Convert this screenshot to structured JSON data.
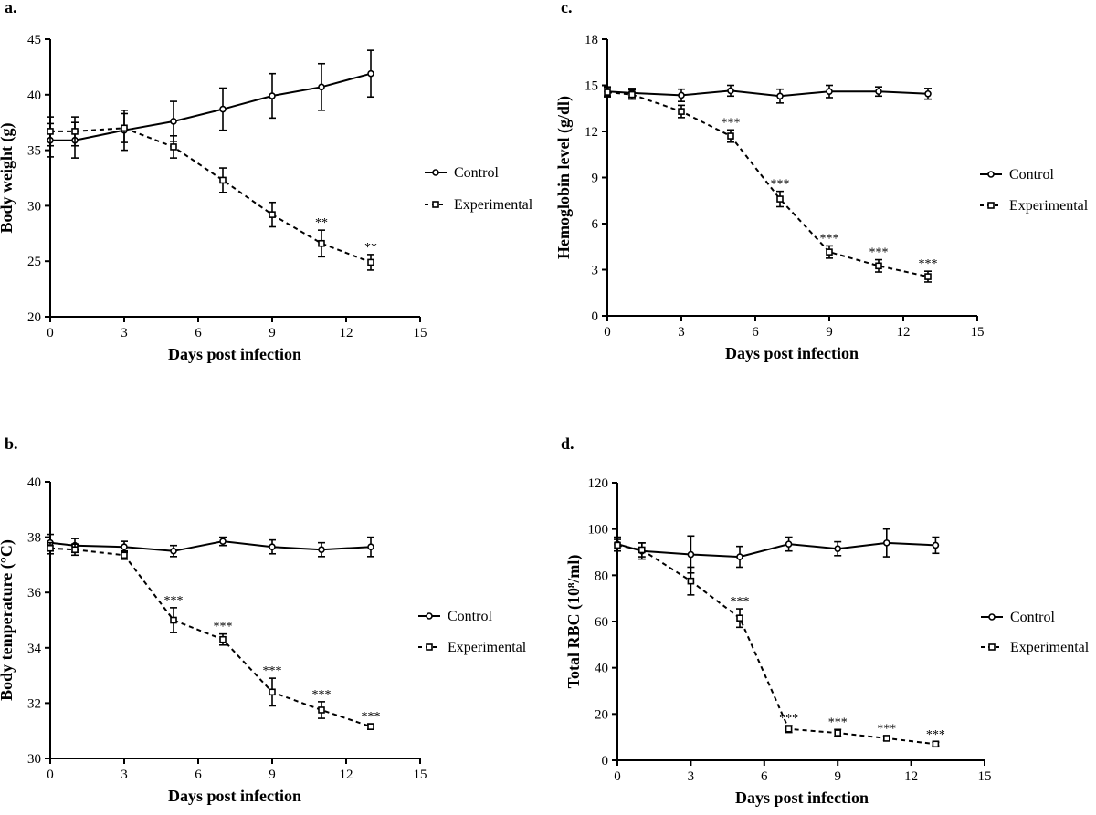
{
  "chart_data": [
    {
      "type": "line",
      "panel_label": "a.",
      "xlabel": "Days post infection",
      "ylabel": "Body weight (g)",
      "xlim": [
        0,
        15
      ],
      "ylim": [
        20,
        45
      ],
      "xticks": [
        0,
        3,
        6,
        9,
        12,
        15
      ],
      "yticks": [
        20,
        25,
        30,
        35,
        40,
        45
      ],
      "legend": {
        "position": "right",
        "entries": [
          "Control",
          "Experimental"
        ]
      },
      "x": [
        0,
        1,
        3,
        5,
        7,
        9,
        11,
        13
      ],
      "series": [
        {
          "name": "Control",
          "style": "solid",
          "marker": "circle",
          "values": [
            35.9,
            35.9,
            36.8,
            37.6,
            38.7,
            39.9,
            40.7,
            41.9
          ],
          "errors": [
            1.5,
            1.6,
            1.8,
            1.8,
            1.9,
            2.0,
            2.1,
            2.1
          ],
          "annotations": [
            "",
            "",
            "",
            "",
            "",
            "",
            "",
            ""
          ]
        },
        {
          "name": "Experimental",
          "style": "dashed",
          "marker": "square",
          "values": [
            36.7,
            36.7,
            37.0,
            35.3,
            32.3,
            29.2,
            26.6,
            24.9
          ],
          "errors": [
            1.3,
            1.3,
            1.3,
            1.0,
            1.1,
            1.1,
            1.2,
            0.7
          ],
          "annotations": [
            "",
            "",
            "",
            "",
            "",
            "",
            "**",
            "**"
          ]
        }
      ]
    },
    {
      "type": "line",
      "panel_label": "b.",
      "xlabel": "Days post infection",
      "ylabel": "Body temperature (°C)",
      "xlim": [
        0,
        15
      ],
      "ylim": [
        30,
        40
      ],
      "xticks": [
        0,
        3,
        6,
        9,
        12,
        15
      ],
      "yticks": [
        30,
        32,
        34,
        36,
        38,
        40
      ],
      "legend": {
        "position": "right",
        "entries": [
          "Control",
          "Experimental"
        ]
      },
      "x": [
        0,
        1,
        3,
        5,
        7,
        9,
        11,
        13
      ],
      "series": [
        {
          "name": "Control",
          "style": "solid",
          "marker": "circle",
          "values": [
            37.8,
            37.7,
            37.65,
            37.5,
            37.85,
            37.65,
            37.55,
            37.65
          ],
          "errors": [
            0.3,
            0.25,
            0.2,
            0.2,
            0.15,
            0.25,
            0.25,
            0.35
          ],
          "annotations": [
            "",
            "",
            "",
            "",
            "",
            "",
            "",
            ""
          ]
        },
        {
          "name": "Experimental",
          "style": "dashed",
          "marker": "square",
          "values": [
            37.6,
            37.55,
            37.35,
            35.0,
            34.3,
            32.4,
            31.75,
            31.15
          ],
          "errors": [
            0.2,
            0.2,
            0.15,
            0.45,
            0.2,
            0.5,
            0.3,
            0.1
          ],
          "annotations": [
            "",
            "",
            "",
            "***",
            "***",
            "***",
            "***",
            "***"
          ]
        }
      ]
    },
    {
      "type": "line",
      "panel_label": "c.",
      "xlabel": "Days post infection",
      "ylabel": "Hemoglobin level (g/dl)",
      "xlim": [
        0,
        15
      ],
      "ylim": [
        0,
        18
      ],
      "xticks": [
        0,
        3,
        6,
        9,
        12,
        15
      ],
      "yticks": [
        0,
        3,
        6,
        9,
        12,
        15,
        18
      ],
      "legend": {
        "position": "right",
        "entries": [
          "Control",
          "Experimental"
        ]
      },
      "x": [
        0,
        1,
        3,
        5,
        7,
        9,
        11,
        13
      ],
      "series": [
        {
          "name": "Control",
          "style": "solid",
          "marker": "circle",
          "values": [
            14.6,
            14.5,
            14.35,
            14.65,
            14.3,
            14.6,
            14.6,
            14.45
          ],
          "errors": [
            0.3,
            0.3,
            0.4,
            0.35,
            0.45,
            0.4,
            0.3,
            0.35
          ],
          "annotations": [
            "",
            "",
            "",
            "",
            "",
            "",
            "",
            ""
          ]
        },
        {
          "name": "Experimental",
          "style": "dashed",
          "marker": "square",
          "values": [
            14.55,
            14.4,
            13.3,
            11.7,
            7.6,
            4.15,
            3.25,
            2.55
          ],
          "errors": [
            0.3,
            0.3,
            0.4,
            0.4,
            0.5,
            0.4,
            0.4,
            0.35
          ],
          "annotations": [
            "",
            "",
            "",
            "***",
            "***",
            "***",
            "***",
            "***"
          ]
        }
      ]
    },
    {
      "type": "line",
      "panel_label": "d.",
      "xlabel": "Days post infection",
      "ylabel": "Total RBC (10⁸/ml)",
      "xlim": [
        0,
        15
      ],
      "ylim": [
        0,
        120
      ],
      "xticks": [
        0,
        3,
        6,
        9,
        12,
        15
      ],
      "yticks": [
        0,
        20,
        40,
        60,
        80,
        100,
        120
      ],
      "legend": {
        "position": "right",
        "entries": [
          "Control",
          "Experimental"
        ]
      },
      "x": [
        0,
        1,
        3,
        5,
        7,
        9,
        11,
        13
      ],
      "series": [
        {
          "name": "Control",
          "style": "solid",
          "marker": "circle",
          "values": [
            93.5,
            90.5,
            89.0,
            88.0,
            93.5,
            91.5,
            94.0,
            93.0
          ],
          "errors": [
            3.0,
            3.5,
            8.0,
            4.5,
            3.0,
            3.0,
            6.0,
            3.5
          ],
          "annotations": [
            "",
            "",
            "",
            "",
            "",
            "",
            "",
            ""
          ]
        },
        {
          "name": "Experimental",
          "style": "dashed",
          "marker": "square",
          "values": [
            93.0,
            91.0,
            77.5,
            61.5,
            13.5,
            11.8,
            9.5,
            7.0
          ],
          "errors": [
            2.5,
            3.0,
            6.0,
            4.0,
            1.5,
            1.5,
            1.0,
            0.8
          ],
          "annotations": [
            "",
            "",
            "",
            "***",
            "***",
            "***",
            "***",
            "***"
          ]
        }
      ]
    }
  ]
}
